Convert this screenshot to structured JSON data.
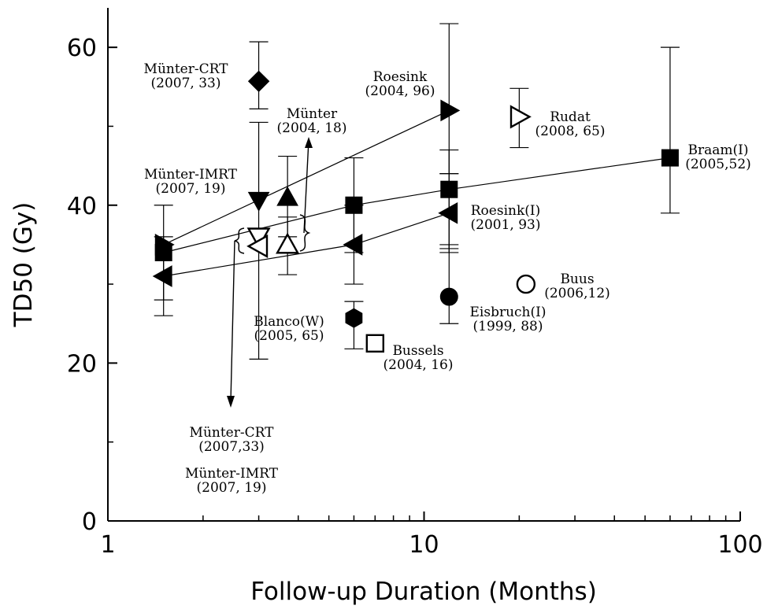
{
  "chart_data": {
    "type": "scatter",
    "title": "",
    "xlabel": "Follow-up Duration (Months)",
    "ylabel": "TD50 (Gy)",
    "xscale": "log",
    "xlim": [
      1,
      100
    ],
    "ylim": [
      0,
      65
    ],
    "grid": false,
    "legend": "none",
    "xticks": [
      {
        "value": 1,
        "label": "1"
      },
      {
        "value": 10,
        "label": "10"
      },
      {
        "value": 100,
        "label": "100"
      }
    ],
    "yticks": [
      {
        "value": 0,
        "label": "0"
      },
      {
        "value": 20,
        "label": "20"
      },
      {
        "value": 40,
        "label": "40"
      },
      {
        "value": 60,
        "label": "60"
      }
    ],
    "points": [
      {
        "id": "munter-crt-2007-diamond",
        "x": 3,
        "y": 55.7,
        "err_low": 52.2,
        "err_high": 60.7,
        "marker": "diamond",
        "filled": true
      },
      {
        "id": "munter-imrt-2007-down",
        "x": 3,
        "y": 40.6,
        "err_low": 20.5,
        "err_high": 50.5,
        "marker": "triangle-down",
        "filled": true
      },
      {
        "id": "munter-2004-up",
        "x": 3.7,
        "y": 41,
        "err_low": 36,
        "err_high": 46.2,
        "marker": "triangle-up",
        "filled": true
      },
      {
        "id": "munter-crt-2007-open-down",
        "x": 3,
        "y": 36,
        "marker": "triangle-down",
        "filled": false
      },
      {
        "id": "munter-imrt-2007-open-left",
        "x": 3,
        "y": 34.8,
        "marker": "triangle-left",
        "filled": false
      },
      {
        "id": "munter-open-up",
        "x": 3.7,
        "y": 35,
        "err_low": 31.2,
        "err_high": 38.5,
        "marker": "triangle-up",
        "filled": false
      },
      {
        "id": "roesink-2004-right-1",
        "x": 1.5,
        "y": 35,
        "marker": "triangle-right",
        "filled": true
      },
      {
        "id": "roesink-2004-right-12",
        "x": 12,
        "y": 52,
        "err_low": 44,
        "err_high": 63,
        "marker": "triangle-right",
        "filled": true
      },
      {
        "id": "braam-square-1",
        "x": 1.5,
        "y": 34,
        "err_low": 28,
        "err_high": 40,
        "marker": "square",
        "filled": true
      },
      {
        "id": "braam-square-6",
        "x": 6,
        "y": 40,
        "err_low": 34,
        "err_high": 46,
        "marker": "square",
        "filled": true
      },
      {
        "id": "braam-square-12",
        "x": 12,
        "y": 42,
        "err_low": 34.5,
        "err_high": 47,
        "marker": "square",
        "filled": true
      },
      {
        "id": "braam-square-60",
        "x": 60,
        "y": 46,
        "err_low": 39,
        "err_high": 60,
        "marker": "square",
        "filled": true
      },
      {
        "id": "roesink-i-left-1",
        "x": 1.5,
        "y": 31,
        "err_low": 26,
        "err_high": 36,
        "marker": "triangle-left",
        "filled": true
      },
      {
        "id": "roesink-i-left-6",
        "x": 6,
        "y": 35,
        "err_low": 30,
        "err_high": 40,
        "marker": "triangle-left",
        "filled": true
      },
      {
        "id": "roesink-i-left-12",
        "x": 12,
        "y": 39,
        "err_low": 34,
        "err_high": 44,
        "marker": "triangle-left",
        "filled": true
      },
      {
        "id": "rudat-2008",
        "x": 20,
        "y": 51.2,
        "err_low": 47.3,
        "err_high": 54.8,
        "marker": "triangle-right",
        "filled": false
      },
      {
        "id": "eisbruch-1999",
        "x": 12,
        "y": 28.4,
        "err_low": 25,
        "err_high": 35,
        "marker": "circle",
        "filled": true
      },
      {
        "id": "buus-2006",
        "x": 21,
        "y": 30,
        "marker": "circle",
        "filled": false
      },
      {
        "id": "blanco-2005",
        "x": 6,
        "y": 25.7,
        "err_low": 21.8,
        "err_high": 27.8,
        "marker": "hexagon",
        "filled": true
      },
      {
        "id": "bussels-2004",
        "x": 7,
        "y": 22.5,
        "marker": "square",
        "filled": false
      }
    ],
    "fit_lines": [
      {
        "id": "roesink-fit",
        "points": [
          [
            1.5,
            35
          ],
          [
            12,
            52
          ]
        ]
      },
      {
        "id": "braam-fit",
        "points": [
          [
            1.5,
            34
          ],
          [
            6,
            40
          ],
          [
            12,
            42
          ],
          [
            60,
            46
          ]
        ]
      },
      {
        "id": "roesink-i-fit",
        "points": [
          [
            1.5,
            31
          ],
          [
            6,
            35
          ],
          [
            12,
            39
          ]
        ]
      }
    ],
    "annotations": [
      {
        "id": "munter-crt-2007",
        "lines": [
          "Münter-CRT",
          "(2007, 33)"
        ]
      },
      {
        "id": "munter-2004",
        "lines": [
          "Münter",
          "(2004, 18)"
        ]
      },
      {
        "id": "roesink-2004",
        "lines": [
          "Roesink",
          "(2004, 96)"
        ]
      },
      {
        "id": "rudat-2008",
        "lines": [
          "Rudat",
          "(2008, 65)"
        ]
      },
      {
        "id": "braam-2005",
        "lines": [
          "Braam(I)",
          "(2005,52)"
        ]
      },
      {
        "id": "munter-imrt-2007",
        "lines": [
          "Münter-IMRT",
          "(2007, 19)"
        ]
      },
      {
        "id": "roesink-i-2001",
        "lines": [
          "Roesink(I)",
          "(2001, 93)"
        ]
      },
      {
        "id": "buus-2006",
        "lines": [
          "Buus",
          "(2006,12)"
        ]
      },
      {
        "id": "eisbruch-1999",
        "lines": [
          "Eisbruch(I)",
          "(1999, 88)"
        ]
      },
      {
        "id": "blanco-2005",
        "lines": [
          "Blanco(W)",
          "(2005, 65)"
        ]
      },
      {
        "id": "bussels-2004",
        "lines": [
          "Bussels",
          "(2004, 16)"
        ]
      },
      {
        "id": "munter-crt-2007-open",
        "lines": [
          "Münter-CRT",
          "(2007,33)"
        ]
      },
      {
        "id": "munter-imrt-2007-open",
        "lines": [
          "Münter-IMRT",
          "(2007, 19)"
        ]
      }
    ]
  }
}
